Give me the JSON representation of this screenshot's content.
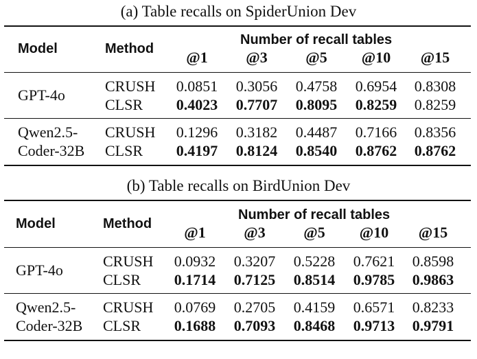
{
  "tables": [
    {
      "caption": "(a) Table recalls on SpiderUnion Dev",
      "header": {
        "model": "Model",
        "method": "Method",
        "group": "Number of recall tables",
        "ks": [
          "@1",
          "@3",
          "@5",
          "@10",
          "@15"
        ]
      },
      "groups": [
        {
          "model_lines": [
            "GPT-4o"
          ],
          "rows": [
            {
              "method": "CRUSH",
              "values": [
                "0.0851",
                "0.3056",
                "0.4758",
                "0.6954",
                "0.8308"
              ],
              "bold": [
                false,
                false,
                false,
                false,
                false
              ]
            },
            {
              "method": "CLSR",
              "values": [
                "0.4023",
                "0.7707",
                "0.8095",
                "0.8259",
                "0.8259"
              ],
              "bold": [
                true,
                true,
                true,
                true,
                false
              ]
            }
          ]
        },
        {
          "model_lines": [
            "Qwen2.5-",
            "Coder-32B"
          ],
          "rows": [
            {
              "method": "CRUSH",
              "values": [
                "0.1296",
                "0.3182",
                "0.4487",
                "0.7166",
                "0.8356"
              ],
              "bold": [
                false,
                false,
                false,
                false,
                false
              ]
            },
            {
              "method": "CLSR",
              "values": [
                "0.4197",
                "0.8124",
                "0.8540",
                "0.8762",
                "0.8762"
              ],
              "bold": [
                true,
                true,
                true,
                true,
                true
              ]
            }
          ]
        }
      ]
    },
    {
      "caption": "(b) Table recalls on BirdUnion Dev",
      "header": {
        "model": "Model",
        "method": "Method",
        "group": "Number of recall tables",
        "ks": [
          "@1",
          "@3",
          "@5",
          "@10",
          "@15"
        ]
      },
      "groups": [
        {
          "model_lines": [
            "GPT-4o"
          ],
          "rows": [
            {
              "method": "CRUSH",
              "values": [
                "0.0932",
                "0.3207",
                "0.5228",
                "0.7621",
                "0.8598"
              ],
              "bold": [
                false,
                false,
                false,
                false,
                false
              ]
            },
            {
              "method": "CLSR",
              "values": [
                "0.1714",
                "0.7125",
                "0.8514",
                "0.9785",
                "0.9863"
              ],
              "bold": [
                true,
                true,
                true,
                true,
                true
              ]
            }
          ]
        },
        {
          "model_lines": [
            "Qwen2.5-",
            "Coder-32B"
          ],
          "rows": [
            {
              "method": "CRUSH",
              "values": [
                "0.0769",
                "0.2705",
                "0.4159",
                "0.6571",
                "0.8233"
              ],
              "bold": [
                false,
                false,
                false,
                false,
                false
              ]
            },
            {
              "method": "CLSR",
              "values": [
                "0.1688",
                "0.7093",
                "0.8468",
                "0.9713",
                "0.9791"
              ],
              "bold": [
                true,
                true,
                true,
                true,
                true
              ]
            }
          ]
        }
      ]
    }
  ]
}
